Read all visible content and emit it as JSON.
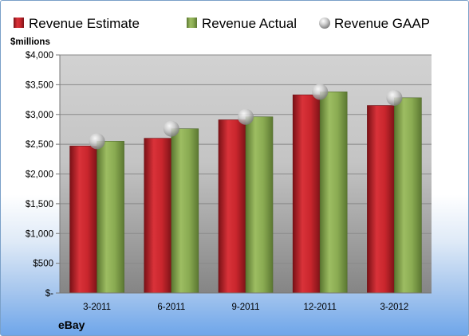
{
  "chart_data": {
    "type": "bar",
    "categories": [
      "3-2011",
      "6-2011",
      "9-2011",
      "12-2011",
      "3-2012"
    ],
    "series": [
      {
        "name": "Revenue Estimate",
        "kind": "bar",
        "color": "#c0282e",
        "values": [
          2470,
          2600,
          2910,
          3330,
          3150
        ]
      },
      {
        "name": "Revenue Actual",
        "kind": "bar",
        "color": "#8aab52",
        "values": [
          2550,
          2760,
          2960,
          3380,
          3280
        ]
      },
      {
        "name": "Revenue GAAP",
        "kind": "marker",
        "color": "#c9c9c9",
        "values": [
          2550,
          2760,
          2960,
          3380,
          3280
        ]
      }
    ],
    "ylim": [
      0,
      4000
    ],
    "yticks": [
      0,
      500,
      1000,
      1500,
      2000,
      2500,
      3000,
      3500,
      4000
    ],
    "ytick_labels": [
      "$-",
      "$500",
      "$1,000",
      "$1,500",
      "$2,000",
      "$2,500",
      "$3,000",
      "$3,500",
      "$4,000"
    ],
    "ylabel": "$millions",
    "footer": "eBay",
    "grid": true,
    "legend_position": "top"
  }
}
